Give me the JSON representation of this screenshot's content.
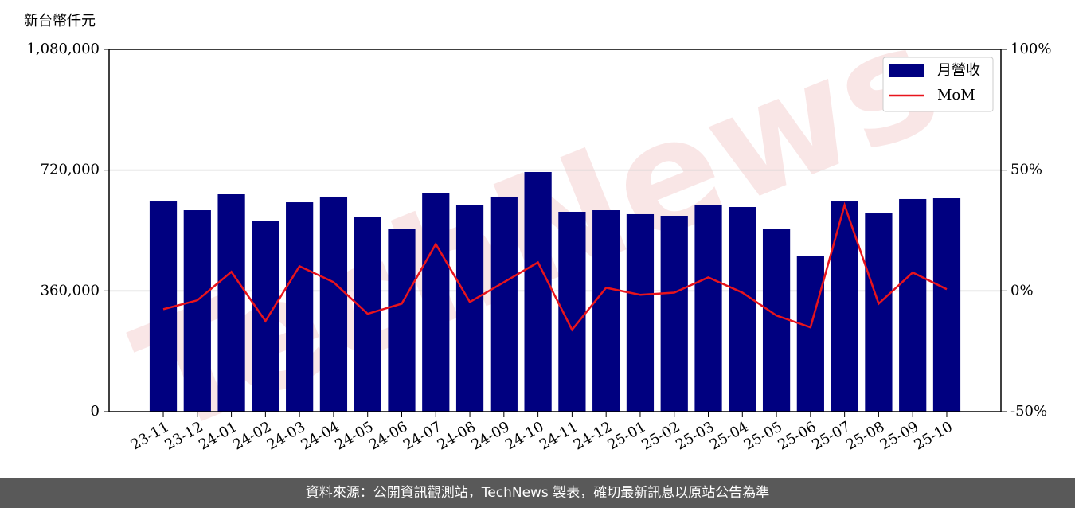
{
  "chart_data": {
    "type": "bar",
    "y_label": "新台幣仟元",
    "watermark": "TechNews",
    "categories": [
      "23-11",
      "23-12",
      "24-01",
      "24-02",
      "24-03",
      "24-04",
      "24-05",
      "24-06",
      "24-07",
      "24-08",
      "24-09",
      "24-10",
      "24-11",
      "24-12",
      "25-01",
      "25-02",
      "25-03",
      "25-04",
      "25-05",
      "25-06",
      "25-07",
      "25-08",
      "25-09",
      "25-10"
    ],
    "series": [
      {
        "name": "月營收",
        "type": "bar",
        "color": "#000080",
        "values": [
          626600,
          600500,
          648000,
          567300,
          624200,
          640900,
          579200,
          545900,
          650400,
          617100,
          640900,
          714500,
          595800,
          600500,
          588700,
          583900,
          614800,
          610000,
          545900,
          462900,
          626600,
          591000,
          633800,
          636100
        ]
      },
      {
        "name": "MoM",
        "type": "line",
        "axis": "y2",
        "color": "#e8141c",
        "values": [
          -7.6,
          -3.9,
          7.9,
          -12.5,
          10.2,
          3.6,
          -9.5,
          -5.3,
          19.4,
          -4.6,
          3.6,
          11.8,
          -16.1,
          1.3,
          -1.6,
          -0.7,
          5.6,
          -0.7,
          -10.2,
          -15.1,
          35.5,
          -5.3,
          7.6,
          0.7
        ]
      }
    ],
    "ylim": [
      0,
      1080000
    ],
    "yticks": [
      0,
      {
        "value": 360000,
        "label": "360,000"
      },
      {
        "value": 720000,
        "label": "720,000"
      },
      {
        "value": 1080000,
        "label": "1,080,000"
      }
    ],
    "y2lim": [
      -50,
      100
    ],
    "y2ticks": [
      {
        "value": -50,
        "label": "-50%"
      },
      {
        "value": 0,
        "label": "0%"
      },
      {
        "value": 50,
        "label": "50%"
      },
      {
        "value": 100,
        "label": "100%"
      }
    ],
    "grid": true,
    "legend": "upper right"
  },
  "footer": {
    "text": "資料來源：公開資訊觀測站，TechNews 製表，確切最新訊息以原站公告為準"
  }
}
